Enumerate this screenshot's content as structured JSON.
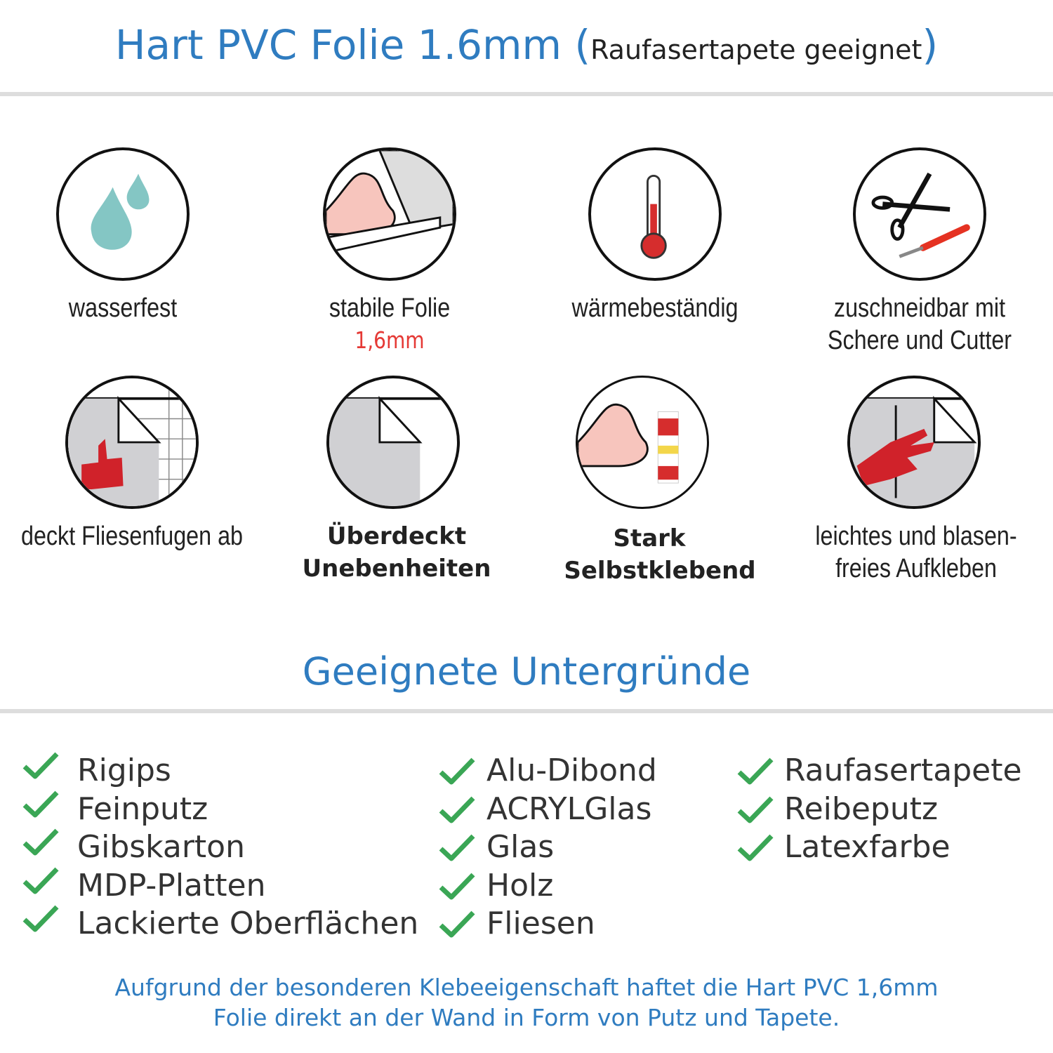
{
  "header": {
    "title": "Hart PVC Folie 1.6mm",
    "subtitle": "Raufasertapete geeignet",
    "open_paren": "(",
    "close_paren": ")"
  },
  "features": [
    {
      "icon": "water-drops-icon",
      "label": "wasserfest"
    },
    {
      "icon": "muscle-roll-icon",
      "label": "stabile Folie",
      "sublabel": "1,6mm"
    },
    {
      "icon": "thermometer-icon",
      "label": "wärmebeständig"
    },
    {
      "icon": "scissors-cutter-icon",
      "label_line1": "zuschneidbar mit",
      "label_line2": "Schere und Cutter"
    },
    {
      "icon": "thumbs-up-tiles-icon",
      "label": "deckt Fliesenfugen ab"
    },
    {
      "icon": "peeling-foil-icon",
      "label_line1": "Überdeckt",
      "label_line2": "Unebenheiten"
    },
    {
      "icon": "muscle-glue-icon",
      "label_line1": "Stark",
      "label_line2": "Selbstklebend"
    },
    {
      "icon": "hand-smoothing-icon",
      "label_line1": "leichtes und blasen-",
      "label_line2": "freies Aufkleben"
    }
  ],
  "section": {
    "title": "Geeignete Untergründe"
  },
  "surfaces": {
    "col1": [
      "Rigips",
      "Feinputz",
      "Gibskarton",
      "MDP-Platten",
      "Lackierte Oberflächen"
    ],
    "col2": [
      "Alu-Dibond",
      "ACRYLGlas",
      "Glas",
      "Holz",
      "Fliesen"
    ],
    "col3": [
      "Raufasertapete",
      "Reibeputz",
      "Latexfarbe"
    ]
  },
  "footer": {
    "line1": "Aufgrund der besonderen Klebeeigenschaft haftet die Hart PVC 1,6mm",
    "line2": "Folie direkt an der Wand in Form von Putz und Tapete."
  },
  "colors": {
    "accent": "#2f7cc0",
    "check": "#3aa655",
    "highlight": "#e53935",
    "rule": "#dddddd"
  }
}
